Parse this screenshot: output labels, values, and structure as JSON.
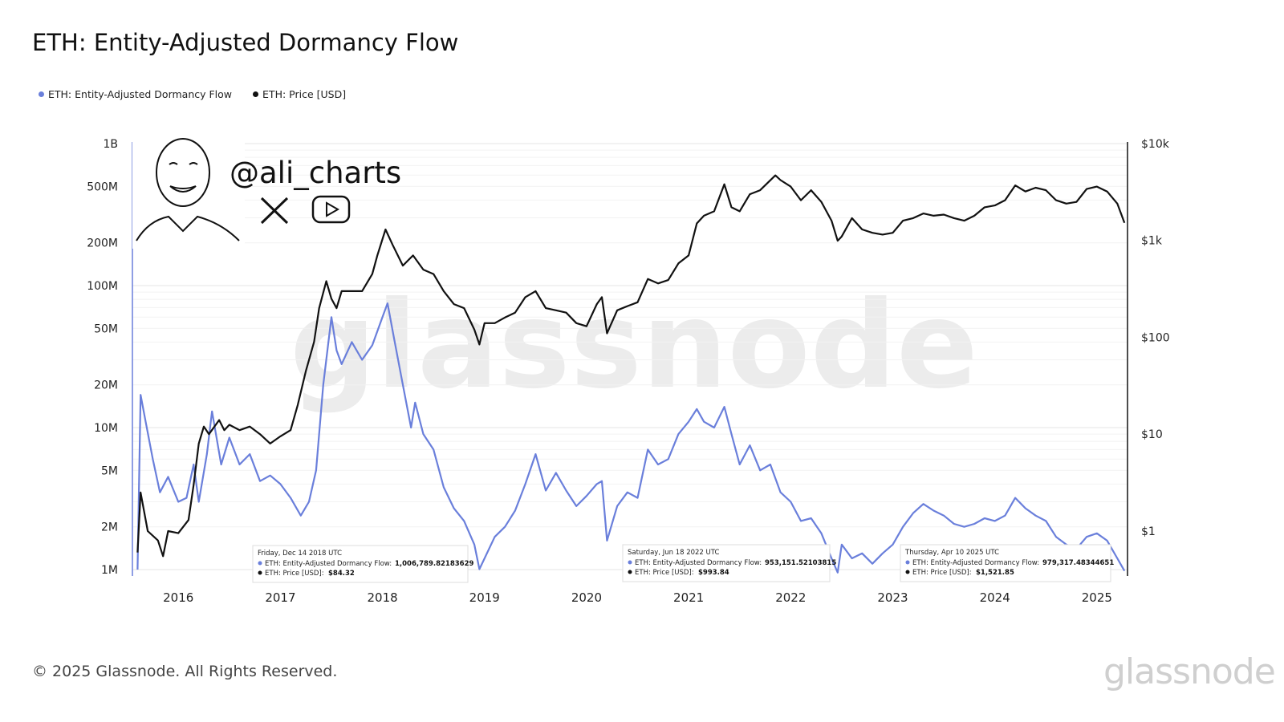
{
  "header": {
    "title": "ETH: Entity-Adjusted Dormancy Flow"
  },
  "legend": {
    "items": [
      {
        "label": "ETH: Entity-Adjusted Dormancy Flow",
        "color": "#6a7fdb"
      },
      {
        "label": "ETH: Price [USD]",
        "color": "#111111"
      }
    ]
  },
  "watermark": {
    "handle": "@ali_charts",
    "brand_bg": "glassnode"
  },
  "footer": {
    "copyright": "© 2025 Glassnode. All Rights Reserved.",
    "brand": "glassnode"
  },
  "tooltips": [
    {
      "date": "Friday, Dec 14 2018 UTC",
      "dormancy_label": "ETH: Entity-Adjusted Dormancy Flow:",
      "dormancy_value": "1,006,789.82183629",
      "price_label": "ETH: Price [USD]:",
      "price_value": "$84.32"
    },
    {
      "date": "Saturday, Jun 18 2022 UTC",
      "dormancy_label": "ETH: Entity-Adjusted Dormancy Flow:",
      "dormancy_value": "953,151.52103815",
      "price_label": "ETH: Price [USD]:",
      "price_value": "$993.84"
    },
    {
      "date": "Thursday, Apr 10 2025 UTC",
      "dormancy_label": "ETH: Entity-Adjusted Dormancy Flow:",
      "dormancy_value": "979,317.48344651",
      "price_label": "ETH: Price [USD]:",
      "price_value": "$1,521.85"
    }
  ],
  "chart_data": {
    "type": "line",
    "title": "ETH: Entity-Adjusted Dormancy Flow",
    "x_ticks": [
      "2016",
      "2017",
      "2018",
      "2019",
      "2020",
      "2021",
      "2022",
      "2023",
      "2024",
      "2025"
    ],
    "y_left": {
      "scale": "log",
      "range": [
        1000000,
        1000000000
      ],
      "tick_values": [
        1000000,
        2000000,
        5000000,
        10000000,
        20000000,
        50000000,
        100000000,
        200000000,
        500000000,
        1000000000
      ],
      "tick_labels": [
        "1M",
        "2M",
        "5M",
        "10M",
        "20M",
        "50M",
        "100M",
        "200M",
        "500M",
        "1B"
      ]
    },
    "y_right": {
      "scale": "log",
      "range": [
        0.4,
        10000
      ],
      "tick_values": [
        1,
        10,
        100,
        1000,
        10000
      ],
      "tick_labels": [
        "$1",
        "$10",
        "$100",
        "$1k",
        "$10k"
      ]
    },
    "grid": true,
    "legend_position": "top-left",
    "series": [
      {
        "name": "ETH: Entity-Adjusted Dormancy Flow",
        "axis": "left",
        "color": "#6a7fdb",
        "points": [
          [
            2015.6,
            1000000
          ],
          [
            2015.63,
            17000000
          ],
          [
            2015.68,
            11000000
          ],
          [
            2015.75,
            6000000
          ],
          [
            2015.82,
            3500000
          ],
          [
            2015.9,
            4500000
          ],
          [
            2016.0,
            3000000
          ],
          [
            2016.08,
            3200000
          ],
          [
            2016.15,
            5500000
          ],
          [
            2016.2,
            3000000
          ],
          [
            2016.28,
            6500000
          ],
          [
            2016.33,
            13000000
          ],
          [
            2016.42,
            5500000
          ],
          [
            2016.5,
            8500000
          ],
          [
            2016.6,
            5500000
          ],
          [
            2016.7,
            6500000
          ],
          [
            2016.8,
            4200000
          ],
          [
            2016.9,
            4600000
          ],
          [
            2017.0,
            4000000
          ],
          [
            2017.1,
            3200000
          ],
          [
            2017.2,
            2400000
          ],
          [
            2017.28,
            3000000
          ],
          [
            2017.35,
            5000000
          ],
          [
            2017.42,
            20000000
          ],
          [
            2017.5,
            60000000
          ],
          [
            2017.55,
            35000000
          ],
          [
            2017.6,
            28000000
          ],
          [
            2017.7,
            40000000
          ],
          [
            2017.8,
            30000000
          ],
          [
            2017.9,
            38000000
          ],
          [
            2018.0,
            60000000
          ],
          [
            2018.05,
            75000000
          ],
          [
            2018.12,
            40000000
          ],
          [
            2018.2,
            20000000
          ],
          [
            2018.28,
            10000000
          ],
          [
            2018.32,
            15000000
          ],
          [
            2018.4,
            9000000
          ],
          [
            2018.5,
            7000000
          ],
          [
            2018.6,
            3800000
          ],
          [
            2018.7,
            2700000
          ],
          [
            2018.8,
            2200000
          ],
          [
            2018.9,
            1500000
          ],
          [
            2018.95,
            1006789
          ],
          [
            2019.0,
            1200000
          ],
          [
            2019.1,
            1700000
          ],
          [
            2019.2,
            2000000
          ],
          [
            2019.3,
            2600000
          ],
          [
            2019.4,
            4000000
          ],
          [
            2019.5,
            6500000
          ],
          [
            2019.6,
            3600000
          ],
          [
            2019.7,
            4800000
          ],
          [
            2019.8,
            3600000
          ],
          [
            2019.9,
            2800000
          ],
          [
            2020.0,
            3300000
          ],
          [
            2020.1,
            4000000
          ],
          [
            2020.15,
            4200000
          ],
          [
            2020.2,
            1600000
          ],
          [
            2020.3,
            2800000
          ],
          [
            2020.4,
            3500000
          ],
          [
            2020.5,
            3200000
          ],
          [
            2020.6,
            7000000
          ],
          [
            2020.7,
            5500000
          ],
          [
            2020.8,
            6000000
          ],
          [
            2020.9,
            9000000
          ],
          [
            2021.0,
            11000000
          ],
          [
            2021.08,
            13500000
          ],
          [
            2021.15,
            11000000
          ],
          [
            2021.25,
            10000000
          ],
          [
            2021.35,
            14000000
          ],
          [
            2021.42,
            9000000
          ],
          [
            2021.5,
            5500000
          ],
          [
            2021.6,
            7500000
          ],
          [
            2021.7,
            5000000
          ],
          [
            2021.8,
            5500000
          ],
          [
            2021.9,
            3500000
          ],
          [
            2022.0,
            3000000
          ],
          [
            2022.1,
            2200000
          ],
          [
            2022.2,
            2300000
          ],
          [
            2022.3,
            1800000
          ],
          [
            2022.4,
            1200000
          ],
          [
            2022.46,
            953151
          ],
          [
            2022.5,
            1500000
          ],
          [
            2022.6,
            1200000
          ],
          [
            2022.7,
            1300000
          ],
          [
            2022.8,
            1100000
          ],
          [
            2022.9,
            1300000
          ],
          [
            2023.0,
            1500000
          ],
          [
            2023.1,
            2000000
          ],
          [
            2023.2,
            2500000
          ],
          [
            2023.3,
            2900000
          ],
          [
            2023.4,
            2600000
          ],
          [
            2023.5,
            2400000
          ],
          [
            2023.6,
            2100000
          ],
          [
            2023.7,
            2000000
          ],
          [
            2023.8,
            2100000
          ],
          [
            2023.9,
            2300000
          ],
          [
            2024.0,
            2200000
          ],
          [
            2024.1,
            2400000
          ],
          [
            2024.2,
            3200000
          ],
          [
            2024.3,
            2700000
          ],
          [
            2024.4,
            2400000
          ],
          [
            2024.5,
            2200000
          ],
          [
            2024.6,
            1700000
          ],
          [
            2024.7,
            1500000
          ],
          [
            2024.8,
            1400000
          ],
          [
            2024.9,
            1700000
          ],
          [
            2025.0,
            1800000
          ],
          [
            2025.1,
            1600000
          ],
          [
            2025.2,
            1200000
          ],
          [
            2025.27,
            979317
          ]
        ]
      },
      {
        "name": "ETH: Price [USD]",
        "axis": "right",
        "color": "#111111",
        "points": [
          [
            2015.6,
            0.6
          ],
          [
            2015.63,
            2.5
          ],
          [
            2015.7,
            1.0
          ],
          [
            2015.8,
            0.8
          ],
          [
            2015.85,
            0.55
          ],
          [
            2015.9,
            1.0
          ],
          [
            2016.0,
            0.95
          ],
          [
            2016.1,
            1.3
          ],
          [
            2016.15,
            3.0
          ],
          [
            2016.2,
            8.0
          ],
          [
            2016.25,
            12.0
          ],
          [
            2016.3,
            10.0
          ],
          [
            2016.4,
            14.0
          ],
          [
            2016.45,
            11.0
          ],
          [
            2016.5,
            12.5
          ],
          [
            2016.6,
            11.0
          ],
          [
            2016.7,
            12.0
          ],
          [
            2016.8,
            10.0
          ],
          [
            2016.9,
            8.0
          ],
          [
            2017.0,
            9.5
          ],
          [
            2017.1,
            11.0
          ],
          [
            2017.17,
            20.0
          ],
          [
            2017.25,
            45.0
          ],
          [
            2017.33,
            90.0
          ],
          [
            2017.38,
            200.0
          ],
          [
            2017.45,
            380.0
          ],
          [
            2017.5,
            250.0
          ],
          [
            2017.55,
            200.0
          ],
          [
            2017.6,
            300.0
          ],
          [
            2017.7,
            300.0
          ],
          [
            2017.8,
            300.0
          ],
          [
            2017.9,
            450.0
          ],
          [
            2017.95,
            700.0
          ],
          [
            2018.03,
            1300.0
          ],
          [
            2018.1,
            900.0
          ],
          [
            2018.2,
            550.0
          ],
          [
            2018.3,
            700.0
          ],
          [
            2018.4,
            500.0
          ],
          [
            2018.5,
            450.0
          ],
          [
            2018.6,
            300.0
          ],
          [
            2018.7,
            220.0
          ],
          [
            2018.8,
            200.0
          ],
          [
            2018.9,
            120.0
          ],
          [
            2018.95,
            84.32
          ],
          [
            2019.0,
            140.0
          ],
          [
            2019.1,
            140.0
          ],
          [
            2019.2,
            160.0
          ],
          [
            2019.3,
            180.0
          ],
          [
            2019.4,
            260.0
          ],
          [
            2019.5,
            300.0
          ],
          [
            2019.6,
            200.0
          ],
          [
            2019.7,
            190.0
          ],
          [
            2019.8,
            180.0
          ],
          [
            2019.9,
            140.0
          ],
          [
            2020.0,
            130.0
          ],
          [
            2020.1,
            220.0
          ],
          [
            2020.15,
            260.0
          ],
          [
            2020.2,
            110.0
          ],
          [
            2020.3,
            190.0
          ],
          [
            2020.4,
            210.0
          ],
          [
            2020.5,
            230.0
          ],
          [
            2020.6,
            400.0
          ],
          [
            2020.7,
            360.0
          ],
          [
            2020.8,
            390.0
          ],
          [
            2020.9,
            580.0
          ],
          [
            2021.0,
            700.0
          ],
          [
            2021.08,
            1500.0
          ],
          [
            2021.15,
            1800.0
          ],
          [
            2021.25,
            2000.0
          ],
          [
            2021.35,
            3800.0
          ],
          [
            2021.42,
            2200.0
          ],
          [
            2021.5,
            2000.0
          ],
          [
            2021.6,
            3000.0
          ],
          [
            2021.7,
            3300.0
          ],
          [
            2021.85,
            4700.0
          ],
          [
            2021.9,
            4200.0
          ],
          [
            2022.0,
            3600.0
          ],
          [
            2022.1,
            2600.0
          ],
          [
            2022.2,
            3300.0
          ],
          [
            2022.3,
            2500.0
          ],
          [
            2022.4,
            1600.0
          ],
          [
            2022.46,
            993.84
          ],
          [
            2022.5,
            1100.0
          ],
          [
            2022.6,
            1700.0
          ],
          [
            2022.7,
            1300.0
          ],
          [
            2022.8,
            1200.0
          ],
          [
            2022.9,
            1150.0
          ],
          [
            2023.0,
            1200.0
          ],
          [
            2023.1,
            1600.0
          ],
          [
            2023.2,
            1700.0
          ],
          [
            2023.3,
            1900.0
          ],
          [
            2023.4,
            1800.0
          ],
          [
            2023.5,
            1850.0
          ],
          [
            2023.6,
            1700.0
          ],
          [
            2023.7,
            1600.0
          ],
          [
            2023.8,
            1800.0
          ],
          [
            2023.9,
            2200.0
          ],
          [
            2024.0,
            2300.0
          ],
          [
            2024.1,
            2600.0
          ],
          [
            2024.2,
            3700.0
          ],
          [
            2024.3,
            3200.0
          ],
          [
            2024.4,
            3500.0
          ],
          [
            2024.5,
            3300.0
          ],
          [
            2024.6,
            2600.0
          ],
          [
            2024.7,
            2400.0
          ],
          [
            2024.8,
            2500.0
          ],
          [
            2024.9,
            3400.0
          ],
          [
            2025.0,
            3600.0
          ],
          [
            2025.1,
            3200.0
          ],
          [
            2025.2,
            2400.0
          ],
          [
            2025.27,
            1521.85
          ]
        ]
      }
    ]
  }
}
